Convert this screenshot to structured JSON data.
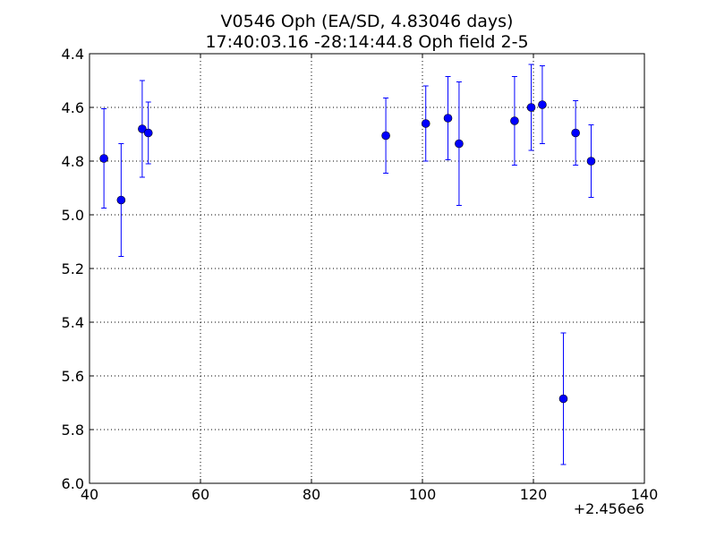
{
  "chart_data": {
    "type": "scatter",
    "title": "V0546 Oph (EA/SD, 4.83046 days)",
    "subtitle": "17:40:03.16 -28:14:44.8 Oph field 2-5",
    "xlabel": "",
    "ylabel": "",
    "x_offset_label": "+2.456e6",
    "xlim": [
      40,
      140
    ],
    "ylim": [
      6.0,
      4.4
    ],
    "y_inverted": true,
    "grid": true,
    "x_ticks": [
      40,
      60,
      80,
      100,
      120,
      140
    ],
    "x_tick_labels": [
      "40",
      "60",
      "80",
      "100",
      "120",
      "140"
    ],
    "y_ticks": [
      4.4,
      4.6,
      4.8,
      5.0,
      5.2,
      5.4,
      5.6,
      5.8,
      6.0
    ],
    "y_tick_labels": [
      "4.4",
      "4.6",
      "4.8",
      "5.0",
      "5.2",
      "5.4",
      "5.6",
      "5.8",
      "6.0"
    ],
    "color": "#0000ff",
    "points": [
      {
        "x": 42.6,
        "y": 4.79,
        "err": 0.185
      },
      {
        "x": 45.7,
        "y": 4.945,
        "err": 0.21
      },
      {
        "x": 49.5,
        "y": 4.68,
        "err": 0.18
      },
      {
        "x": 50.6,
        "y": 4.695,
        "err": 0.115
      },
      {
        "x": 93.4,
        "y": 4.705,
        "err": 0.14
      },
      {
        "x": 100.6,
        "y": 4.66,
        "err": 0.14
      },
      {
        "x": 104.6,
        "y": 4.64,
        "err": 0.155
      },
      {
        "x": 106.6,
        "y": 4.735,
        "err": 0.23
      },
      {
        "x": 116.6,
        "y": 4.65,
        "err": 0.165
      },
      {
        "x": 119.6,
        "y": 4.6,
        "err": 0.16
      },
      {
        "x": 121.6,
        "y": 4.59,
        "err": 0.145
      },
      {
        "x": 125.4,
        "y": 5.685,
        "err": 0.245
      },
      {
        "x": 127.6,
        "y": 4.695,
        "err": 0.12
      },
      {
        "x": 130.4,
        "y": 4.8,
        "err": 0.135
      }
    ]
  }
}
